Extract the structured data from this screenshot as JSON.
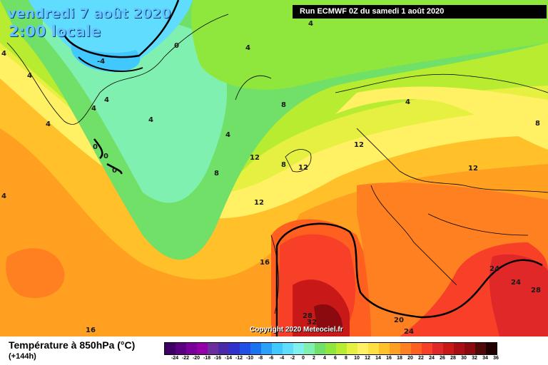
{
  "title": {
    "date": "vendredi 7 août 2020",
    "time": "2:00 locale"
  },
  "run_label": "Run ECMWF 0Z du samedi 1 août 2020",
  "copyright": "Copyright 2020 Meteociel.fr",
  "legend": {
    "title": "Température à 850hPa (°C)",
    "subtitle": "(+144h)",
    "ticks": [
      "-24",
      "-22",
      "-20",
      "-18",
      "-16",
      "-14",
      "-12",
      "-10",
      "-8",
      "-6",
      "-4",
      "-2",
      "0",
      "2",
      "4",
      "6",
      "8",
      "10",
      "12",
      "14",
      "16",
      "18",
      "20",
      "22",
      "24",
      "26",
      "28",
      "30",
      "32",
      "34",
      "36"
    ],
    "colors": [
      "#3e0066",
      "#5a0080",
      "#7a0099",
      "#9400a8",
      "#6a2e9e",
      "#4a2aa8",
      "#3030cc",
      "#2050e6",
      "#1a74f0",
      "#2aa0f8",
      "#40c8ff",
      "#60dcff",
      "#80f0ee",
      "#80f0b0",
      "#70e068",
      "#8fe63c",
      "#b8ec30",
      "#e6f040",
      "#fff064",
      "#ffe040",
      "#ffc02a",
      "#ffa020",
      "#ff8020",
      "#ff6020",
      "#f84028",
      "#e02828",
      "#c81818",
      "#a80e14",
      "#8a0a10",
      "#500808",
      "#200000"
    ]
  },
  "isolines": [
    "-4",
    "0",
    "0",
    "0",
    "0",
    "4",
    "4",
    "4",
    "4",
    "4",
    "4",
    "4",
    "4",
    "4",
    "4",
    "4",
    "8",
    "8",
    "8",
    "8",
    "12",
    "12",
    "12",
    "12",
    "12",
    "16",
    "16",
    "20",
    "24",
    "24",
    "24",
    "28",
    "28",
    "32"
  ],
  "colors": {
    "background_blue": "#40c8ff",
    "heat_core": "#a80e14",
    "accent_title": "#67c3ff"
  }
}
